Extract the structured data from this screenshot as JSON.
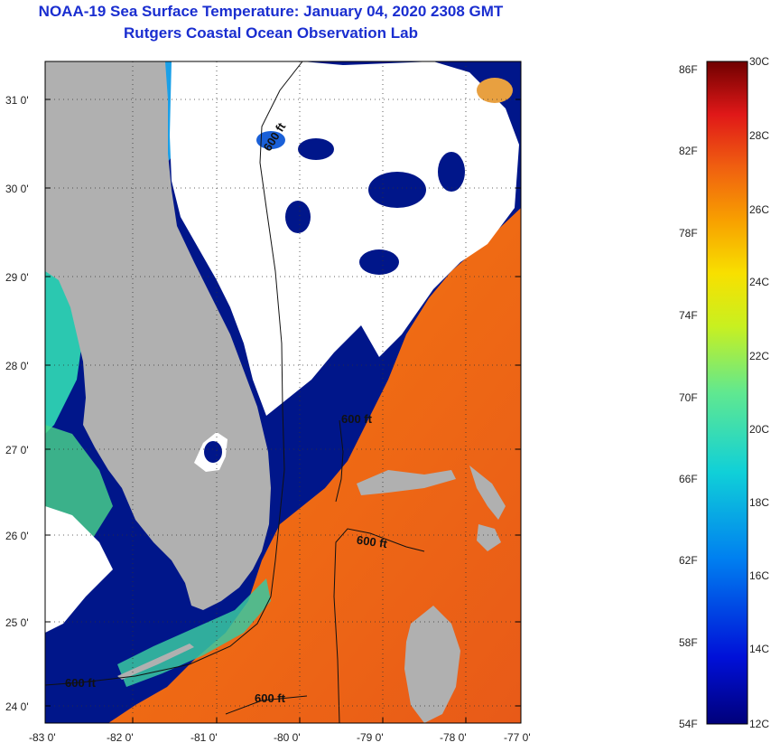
{
  "title": {
    "line1": "NOAA-19 Sea Surface Temperature:  January 04, 2020 2308 GMT",
    "line2": "Rutgers Coastal Ocean Observation Lab"
  },
  "map": {
    "lat_labels": [
      "31 0'",
      "30 0'",
      "29 0'",
      "28 0'",
      "27 0'",
      "26 0'",
      "25 0'",
      "24 0'"
    ],
    "lon_labels": [
      "-83 0'",
      "-82 0'",
      "-81 0'",
      "-80 0'",
      "-79 0'",
      "-78 0'",
      "-77 0'"
    ],
    "contour_labels": [
      "600 ft",
      "600 ft",
      "600 ft",
      "600 ft",
      "600 ft"
    ],
    "colors": {
      "land": "#b0b0b0",
      "cloud": "#ffffff",
      "cold_water": "#00168a",
      "warm_water": "#ef6a14",
      "hot_water": "#e6441a"
    }
  },
  "colorbar": {
    "fahrenheit": [
      "86F",
      "82F",
      "78F",
      "74F",
      "70F",
      "66F",
      "62F",
      "58F",
      "54F"
    ],
    "celsius": [
      "30C",
      "28C",
      "26C",
      "24C",
      "22C",
      "20C",
      "18C",
      "16C",
      "14C",
      "12C"
    ]
  }
}
